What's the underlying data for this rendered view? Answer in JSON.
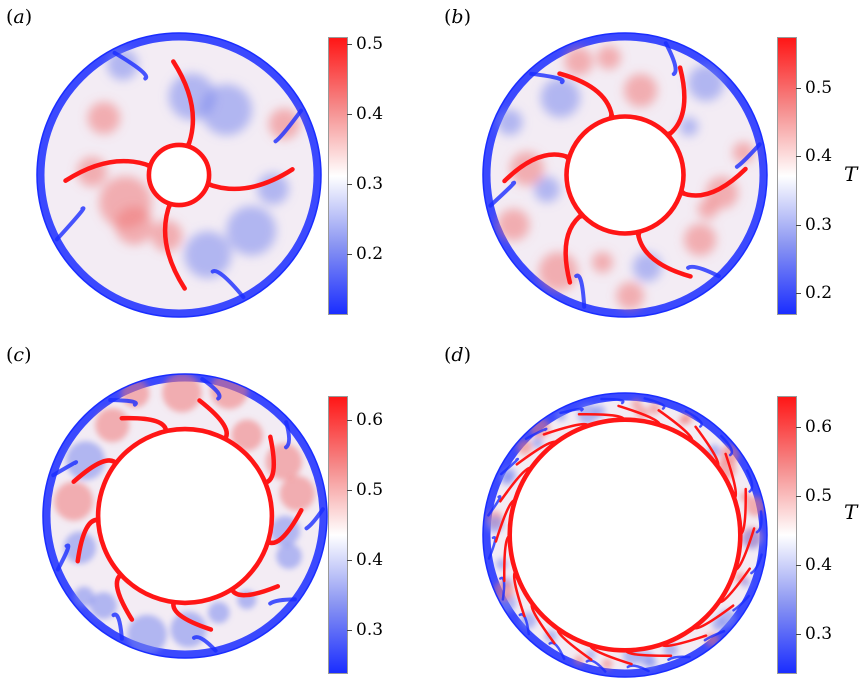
{
  "panels": [
    {
      "label_open": "(",
      "label_letter": "a",
      "label_close": ")",
      "colorbar": {
        "ticks": [
          "0.5",
          "0.4",
          "0.3",
          "0.2"
        ],
        "symbol": ""
      }
    },
    {
      "label_open": "(",
      "label_letter": "b",
      "label_close": ")",
      "colorbar": {
        "ticks": [
          "0.5",
          "0.4",
          "0.3",
          "0.2"
        ],
        "symbol": "T"
      }
    },
    {
      "label_open": "(",
      "label_letter": "c",
      "label_close": ")",
      "colorbar": {
        "ticks": [
          "0.6",
          "0.5",
          "0.4",
          "0.3"
        ],
        "symbol": ""
      }
    },
    {
      "label_open": "(",
      "label_letter": "d",
      "label_close": ")",
      "colorbar": {
        "ticks": [
          "0.6",
          "0.5",
          "0.4",
          "0.3"
        ],
        "symbol": "T"
      }
    }
  ],
  "colors": {
    "cold": "#1a2dff",
    "neutral": "#ffffff",
    "hot": "#ff1616"
  },
  "colorbar_ranges": [
    {
      "min": 0.12,
      "max": 0.51
    },
    {
      "min": 0.18,
      "max": 0.57
    },
    {
      "min": 0.23,
      "max": 0.63
    },
    {
      "min": 0.28,
      "max": 0.68
    }
  ],
  "radius_ratios": [
    0.2,
    0.4,
    0.6,
    0.8
  ],
  "plume_counts": [
    4,
    6,
    9,
    20
  ]
}
